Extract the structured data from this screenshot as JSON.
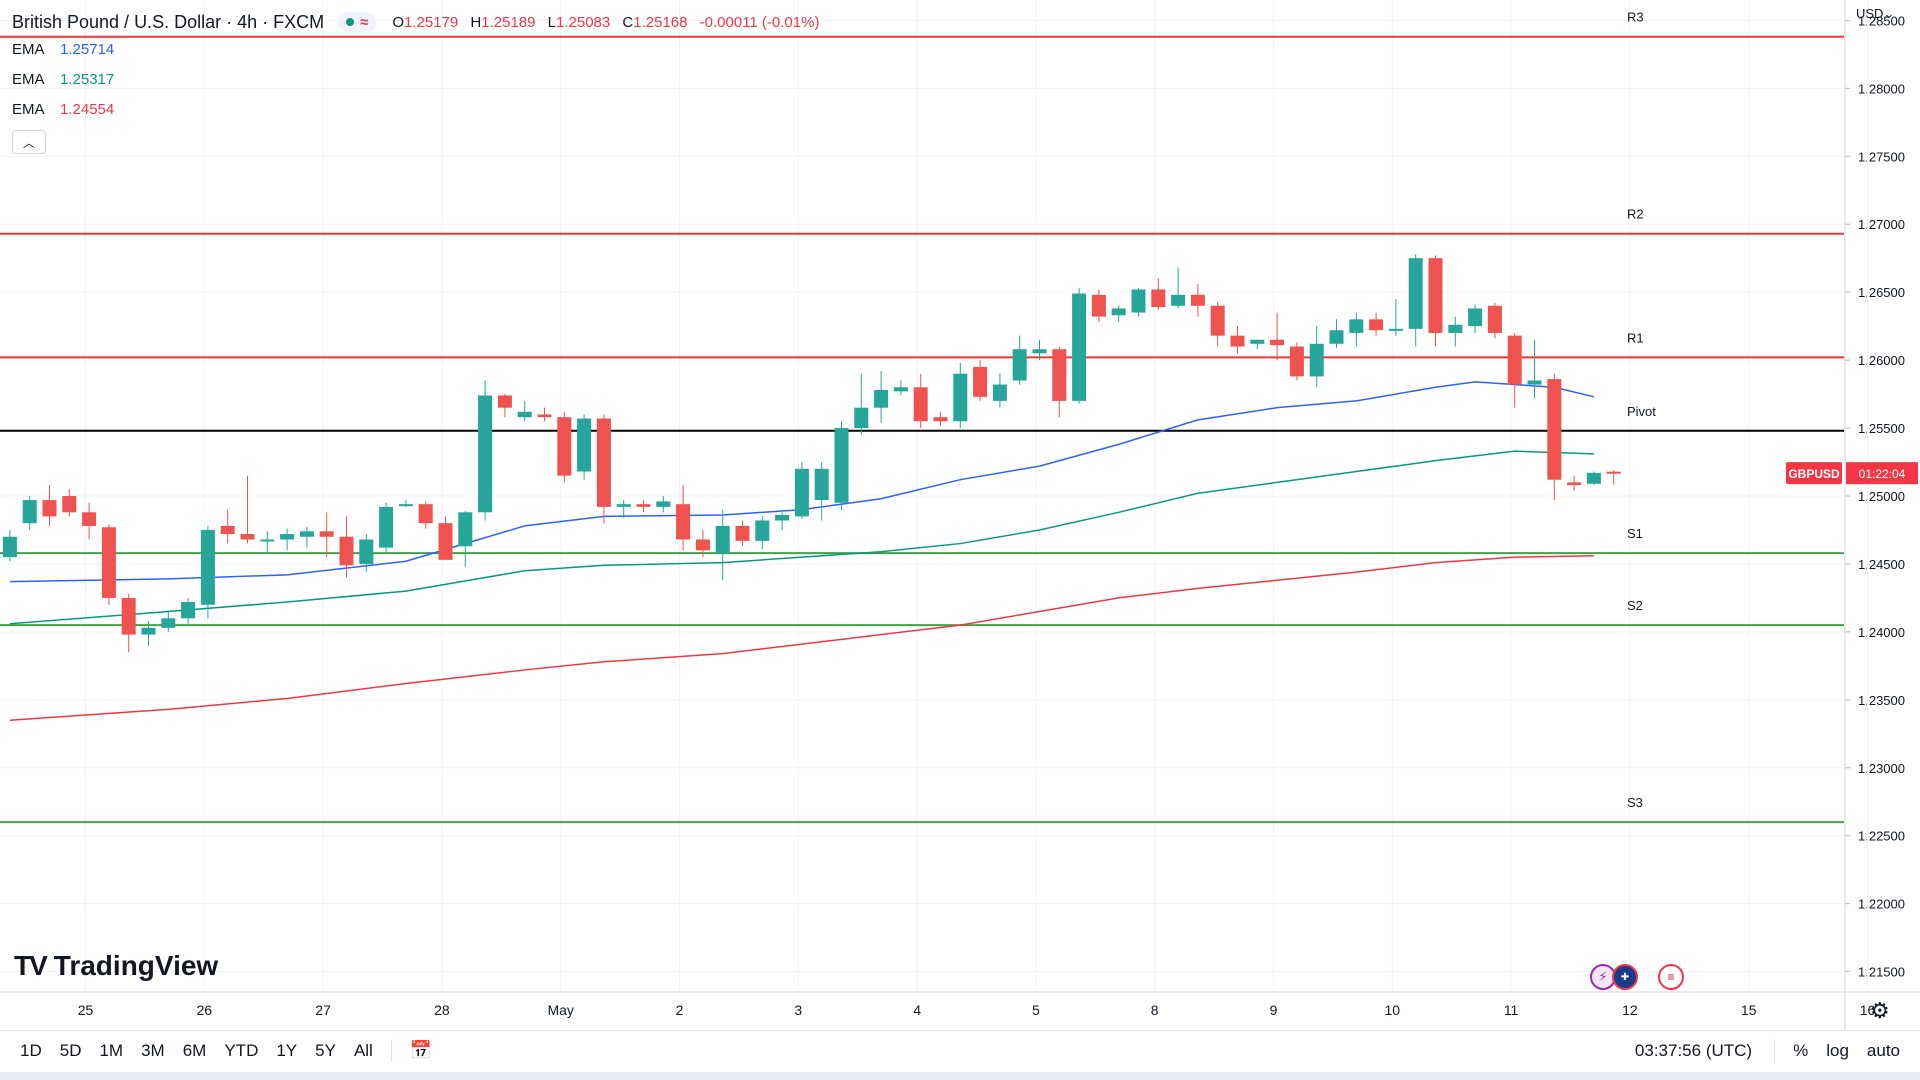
{
  "header": {
    "symbol_title": "British Pound / U.S. Dollar · 4h · FXCM",
    "status_icon": "market-open-dot",
    "ohlc": {
      "o_label": "O",
      "o": "1.25179",
      "h_label": "H",
      "h": "1.25189",
      "l_label": "L",
      "l": "1.25083",
      "c_label": "C",
      "c": "1.25168",
      "change": "-0.00011 (-0.01%)"
    },
    "emas": [
      {
        "name": "EMA",
        "value": "1.25714",
        "color": "#2962ff"
      },
      {
        "name": "EMA",
        "value": "1.25317",
        "color": "#089981"
      },
      {
        "name": "EMA",
        "value": "1.24554",
        "color": "#f23645"
      }
    ],
    "collapse_icon": "chevron-up-icon"
  },
  "price_scale": {
    "currency": "USD",
    "currency_icon": "chevron-down-icon"
  },
  "logo": {
    "text": "TradingView",
    "mark": "TV"
  },
  "bottom_toolbar": {
    "ranges": [
      "1D",
      "5D",
      "1M",
      "3M",
      "6M",
      "YTD",
      "1Y",
      "5Y",
      "All"
    ],
    "calendar_icon": "calendar-range-icon",
    "clock": "03:37:56 (UTC)",
    "percent": "%",
    "log": "log",
    "auto": "auto"
  },
  "settings_icon": "gear-icon",
  "events": [
    "lightning-icon",
    "uk-flag-icon",
    "us-flag-icon"
  ],
  "colors": {
    "up": "#26a69a",
    "down": "#ef5350",
    "resistance": "#e53935",
    "support": "#43a047",
    "pivot": "#000000",
    "grid": "#f0f3fa"
  },
  "chart_data": {
    "type": "candlestick",
    "title": "British Pound / U.S. Dollar · 4h · FXCM",
    "y_ticks": [
      "1.28500",
      "1.28000",
      "1.27500",
      "1.27000",
      "1.26500",
      "1.26000",
      "1.25500",
      "1.25000",
      "1.24500",
      "1.24000",
      "1.23500",
      "1.23000",
      "1.22500",
      "1.22000",
      "1.21500"
    ],
    "ylim": [
      1.2135,
      1.2865
    ],
    "x_ticks": [
      {
        "label": "25",
        "bar": 2
      },
      {
        "label": "26",
        "bar": 8
      },
      {
        "label": "27",
        "bar": 14
      },
      {
        "label": "28",
        "bar": 20
      },
      {
        "label": "May",
        "bar": 26
      },
      {
        "label": "2",
        "bar": 32
      },
      {
        "label": "3",
        "bar": 38
      },
      {
        "label": "4",
        "bar": 44
      },
      {
        "label": "5",
        "bar": 50
      },
      {
        "label": "8",
        "bar": 56
      },
      {
        "label": "9",
        "bar": 62
      },
      {
        "label": "10",
        "bar": 68
      },
      {
        "label": "11",
        "bar": 74
      },
      {
        "label": "12",
        "bar": 80
      },
      {
        "label": "15",
        "bar": 86
      },
      {
        "label": "16",
        "bar": 92
      }
    ],
    "current_price": {
      "symbol": "GBPUSD",
      "value": 1.25168,
      "countdown": "01:22:04"
    },
    "levels": [
      {
        "name": "R3",
        "value": 1.2838,
        "kind": "resistance"
      },
      {
        "name": "R2",
        "value": 1.2693,
        "kind": "resistance"
      },
      {
        "name": "R1",
        "value": 1.2602,
        "kind": "resistance"
      },
      {
        "name": "Pivot",
        "value": 1.2548,
        "kind": "pivot"
      },
      {
        "name": "S1",
        "value": 1.2458,
        "kind": "support"
      },
      {
        "name": "S2",
        "value": 1.2405,
        "kind": "support"
      },
      {
        "name": "S3",
        "value": 1.226,
        "kind": "support"
      }
    ],
    "candles": [
      {
        "o": 1.2455,
        "h": 1.2475,
        "l": 1.2452,
        "c": 1.247
      },
      {
        "o": 1.248,
        "h": 1.25,
        "l": 1.2475,
        "c": 1.2497
      },
      {
        "o": 1.2497,
        "h": 1.2508,
        "l": 1.2478,
        "c": 1.2485
      },
      {
        "o": 1.25,
        "h": 1.2505,
        "l": 1.2485,
        "c": 1.2488
      },
      {
        "o": 1.2488,
        "h": 1.2495,
        "l": 1.2468,
        "c": 1.2478
      },
      {
        "o": 1.2477,
        "h": 1.2479,
        "l": 1.242,
        "c": 1.2425
      },
      {
        "o": 1.2425,
        "h": 1.2428,
        "l": 1.2385,
        "c": 1.2398
      },
      {
        "o": 1.2398,
        "h": 1.2408,
        "l": 1.239,
        "c": 1.2403
      },
      {
        "o": 1.2403,
        "h": 1.2415,
        "l": 1.24,
        "c": 1.241
      },
      {
        "o": 1.241,
        "h": 1.2425,
        "l": 1.2405,
        "c": 1.2422
      },
      {
        "o": 1.242,
        "h": 1.2478,
        "l": 1.241,
        "c": 1.2475
      },
      {
        "o": 1.2478,
        "h": 1.249,
        "l": 1.2465,
        "c": 1.2472
      },
      {
        "o": 1.2472,
        "h": 1.2515,
        "l": 1.2465,
        "c": 1.2468
      },
      {
        "o": 1.2468,
        "h": 1.2474,
        "l": 1.2458,
        "c": 1.2468
      },
      {
        "o": 1.2468,
        "h": 1.2476,
        "l": 1.246,
        "c": 1.2472
      },
      {
        "o": 1.247,
        "h": 1.2477,
        "l": 1.2462,
        "c": 1.2474
      },
      {
        "o": 1.2474,
        "h": 1.2488,
        "l": 1.2455,
        "c": 1.247
      },
      {
        "o": 1.247,
        "h": 1.2485,
        "l": 1.244,
        "c": 1.2449
      },
      {
        "o": 1.245,
        "h": 1.2472,
        "l": 1.2444,
        "c": 1.2468
      },
      {
        "o": 1.2462,
        "h": 1.2495,
        "l": 1.2458,
        "c": 1.2492
      },
      {
        "o": 1.2493,
        "h": 1.2497,
        "l": 1.2492,
        "c": 1.2494
      },
      {
        "o": 1.2494,
        "h": 1.2496,
        "l": 1.2476,
        "c": 1.248
      },
      {
        "o": 1.248,
        "h": 1.2485,
        "l": 1.2455,
        "c": 1.2453
      },
      {
        "o": 1.2463,
        "h": 1.2489,
        "l": 1.2448,
        "c": 1.2488
      },
      {
        "o": 1.2488,
        "h": 1.2585,
        "l": 1.2482,
        "c": 1.2574
      },
      {
        "o": 1.2574,
        "h": 1.2575,
        "l": 1.2558,
        "c": 1.2565
      },
      {
        "o": 1.2558,
        "h": 1.257,
        "l": 1.2555,
        "c": 1.2562
      },
      {
        "o": 1.256,
        "h": 1.2565,
        "l": 1.2555,
        "c": 1.2558
      },
      {
        "o": 1.2558,
        "h": 1.2562,
        "l": 1.251,
        "c": 1.2515
      },
      {
        "o": 1.2518,
        "h": 1.256,
        "l": 1.2512,
        "c": 1.2557
      },
      {
        "o": 1.2557,
        "h": 1.256,
        "l": 1.248,
        "c": 1.2492
      },
      {
        "o": 1.2492,
        "h": 1.2497,
        "l": 1.2484,
        "c": 1.2494
      },
      {
        "o": 1.2494,
        "h": 1.2497,
        "l": 1.2488,
        "c": 1.2492
      },
      {
        "o": 1.2492,
        "h": 1.25,
        "l": 1.2488,
        "c": 1.2496
      },
      {
        "o": 1.2494,
        "h": 1.2508,
        "l": 1.246,
        "c": 1.2468
      },
      {
        "o": 1.2468,
        "h": 1.2475,
        "l": 1.2455,
        "c": 1.246
      },
      {
        "o": 1.2458,
        "h": 1.249,
        "l": 1.2438,
        "c": 1.2478
      },
      {
        "o": 1.2478,
        "h": 1.2482,
        "l": 1.2463,
        "c": 1.2467
      },
      {
        "o": 1.2467,
        "h": 1.2485,
        "l": 1.2461,
        "c": 1.2482
      },
      {
        "o": 1.2482,
        "h": 1.2488,
        "l": 1.2475,
        "c": 1.2486
      },
      {
        "o": 1.2485,
        "h": 1.2525,
        "l": 1.2483,
        "c": 1.252
      },
      {
        "o": 1.2497,
        "h": 1.2525,
        "l": 1.2482,
        "c": 1.252
      },
      {
        "o": 1.2495,
        "h": 1.2555,
        "l": 1.249,
        "c": 1.255
      },
      {
        "o": 1.255,
        "h": 1.259,
        "l": 1.2545,
        "c": 1.2565
      },
      {
        "o": 1.2565,
        "h": 1.2592,
        "l": 1.2554,
        "c": 1.2578
      },
      {
        "o": 1.2577,
        "h": 1.2585,
        "l": 1.2574,
        "c": 1.258
      },
      {
        "o": 1.258,
        "h": 1.259,
        "l": 1.255,
        "c": 1.2555
      },
      {
        "o": 1.2558,
        "h": 1.2562,
        "l": 1.2552,
        "c": 1.2555
      },
      {
        "o": 1.2555,
        "h": 1.2598,
        "l": 1.255,
        "c": 1.259
      },
      {
        "o": 1.2595,
        "h": 1.26,
        "l": 1.257,
        "c": 1.2573
      },
      {
        "o": 1.257,
        "h": 1.259,
        "l": 1.2565,
        "c": 1.2582
      },
      {
        "o": 1.2585,
        "h": 1.2618,
        "l": 1.2582,
        "c": 1.2608
      },
      {
        "o": 1.2605,
        "h": 1.2615,
        "l": 1.26,
        "c": 1.2608
      },
      {
        "o": 1.2608,
        "h": 1.261,
        "l": 1.2558,
        "c": 1.257
      },
      {
        "o": 1.257,
        "h": 1.2653,
        "l": 1.2568,
        "c": 1.2649
      },
      {
        "o": 1.2648,
        "h": 1.2652,
        "l": 1.2628,
        "c": 1.2632
      },
      {
        "o": 1.2633,
        "h": 1.264,
        "l": 1.2628,
        "c": 1.2638
      },
      {
        "o": 1.2635,
        "h": 1.2653,
        "l": 1.2632,
        "c": 1.2652
      },
      {
        "o": 1.2652,
        "h": 1.266,
        "l": 1.2637,
        "c": 1.2639
      },
      {
        "o": 1.264,
        "h": 1.2668,
        "l": 1.2638,
        "c": 1.2648
      },
      {
        "o": 1.2648,
        "h": 1.2656,
        "l": 1.2632,
        "c": 1.264
      },
      {
        "o": 1.264,
        "h": 1.2643,
        "l": 1.261,
        "c": 1.2618
      },
      {
        "o": 1.2618,
        "h": 1.2625,
        "l": 1.2605,
        "c": 1.261
      },
      {
        "o": 1.2612,
        "h": 1.2615,
        "l": 1.2608,
        "c": 1.2615
      },
      {
        "o": 1.2615,
        "h": 1.2635,
        "l": 1.26,
        "c": 1.2611
      },
      {
        "o": 1.261,
        "h": 1.2613,
        "l": 1.2585,
        "c": 1.2588
      },
      {
        "o": 1.2588,
        "h": 1.2625,
        "l": 1.258,
        "c": 1.2612
      },
      {
        "o": 1.2612,
        "h": 1.263,
        "l": 1.2609,
        "c": 1.2622
      },
      {
        "o": 1.262,
        "h": 1.2635,
        "l": 1.261,
        "c": 1.263
      },
      {
        "o": 1.263,
        "h": 1.2635,
        "l": 1.2618,
        "c": 1.2622
      },
      {
        "o": 1.2622,
        "h": 1.2645,
        "l": 1.2618,
        "c": 1.2623
      },
      {
        "o": 1.2623,
        "h": 1.2678,
        "l": 1.261,
        "c": 1.2675
      },
      {
        "o": 1.2675,
        "h": 1.2677,
        "l": 1.261,
        "c": 1.262
      },
      {
        "o": 1.262,
        "h": 1.2632,
        "l": 1.261,
        "c": 1.2626
      },
      {
        "o": 1.2625,
        "h": 1.2641,
        "l": 1.262,
        "c": 1.2638
      },
      {
        "o": 1.264,
        "h": 1.2642,
        "l": 1.2616,
        "c": 1.262
      },
      {
        "o": 1.2618,
        "h": 1.262,
        "l": 1.2565,
        "c": 1.2582
      },
      {
        "o": 1.2582,
        "h": 1.2615,
        "l": 1.2572,
        "c": 1.2585
      },
      {
        "o": 1.2586,
        "h": 1.259,
        "l": 1.2497,
        "c": 1.2512
      },
      {
        "o": 1.251,
        "h": 1.2515,
        "l": 1.2504,
        "c": 1.2508
      },
      {
        "o": 1.2509,
        "h": 1.2518,
        "l": 1.2508,
        "c": 1.2517
      },
      {
        "o": 1.25179,
        "h": 1.25189,
        "l": 1.25083,
        "c": 1.25168
      }
    ],
    "ema_series": [
      {
        "name": "EMA 1.25714",
        "color": "#2962ff",
        "points": [
          [
            0,
            1.2437
          ],
          [
            8,
            1.2439
          ],
          [
            14,
            1.2442
          ],
          [
            20,
            1.2452
          ],
          [
            26,
            1.2478
          ],
          [
            30,
            1.2485
          ],
          [
            36,
            1.2486
          ],
          [
            40,
            1.249
          ],
          [
            44,
            1.2498
          ],
          [
            48,
            1.2512
          ],
          [
            52,
            1.2522
          ],
          [
            56,
            1.2538
          ],
          [
            60,
            1.2556
          ],
          [
            64,
            1.2565
          ],
          [
            68,
            1.257
          ],
          [
            72,
            1.258
          ],
          [
            74,
            1.2584
          ],
          [
            78,
            1.258
          ],
          [
            80,
            1.2573
          ]
        ]
      },
      {
        "name": "EMA 1.25317",
        "color": "#089981",
        "points": [
          [
            0,
            1.2406
          ],
          [
            8,
            1.2415
          ],
          [
            14,
            1.2422
          ],
          [
            20,
            1.243
          ],
          [
            26,
            1.2445
          ],
          [
            30,
            1.2449
          ],
          [
            36,
            1.2451
          ],
          [
            40,
            1.2455
          ],
          [
            44,
            1.2459
          ],
          [
            48,
            1.2465
          ],
          [
            52,
            1.2475
          ],
          [
            56,
            1.2488
          ],
          [
            60,
            1.2502
          ],
          [
            64,
            1.251
          ],
          [
            68,
            1.2518
          ],
          [
            72,
            1.2526
          ],
          [
            76,
            1.2533
          ],
          [
            80,
            1.2531
          ]
        ]
      },
      {
        "name": "EMA 1.24554",
        "color": "#f23645",
        "points": [
          [
            0,
            1.2335
          ],
          [
            8,
            1.2343
          ],
          [
            14,
            1.2351
          ],
          [
            20,
            1.2362
          ],
          [
            26,
            1.2372
          ],
          [
            30,
            1.2378
          ],
          [
            36,
            1.2384
          ],
          [
            40,
            1.2391
          ],
          [
            44,
            1.2398
          ],
          [
            48,
            1.2405
          ],
          [
            52,
            1.2415
          ],
          [
            56,
            1.2425
          ],
          [
            60,
            1.2432
          ],
          [
            64,
            1.2438
          ],
          [
            68,
            1.2444
          ],
          [
            72,
            1.2451
          ],
          [
            76,
            1.2455
          ],
          [
            80,
            1.2456
          ]
        ]
      }
    ]
  }
}
